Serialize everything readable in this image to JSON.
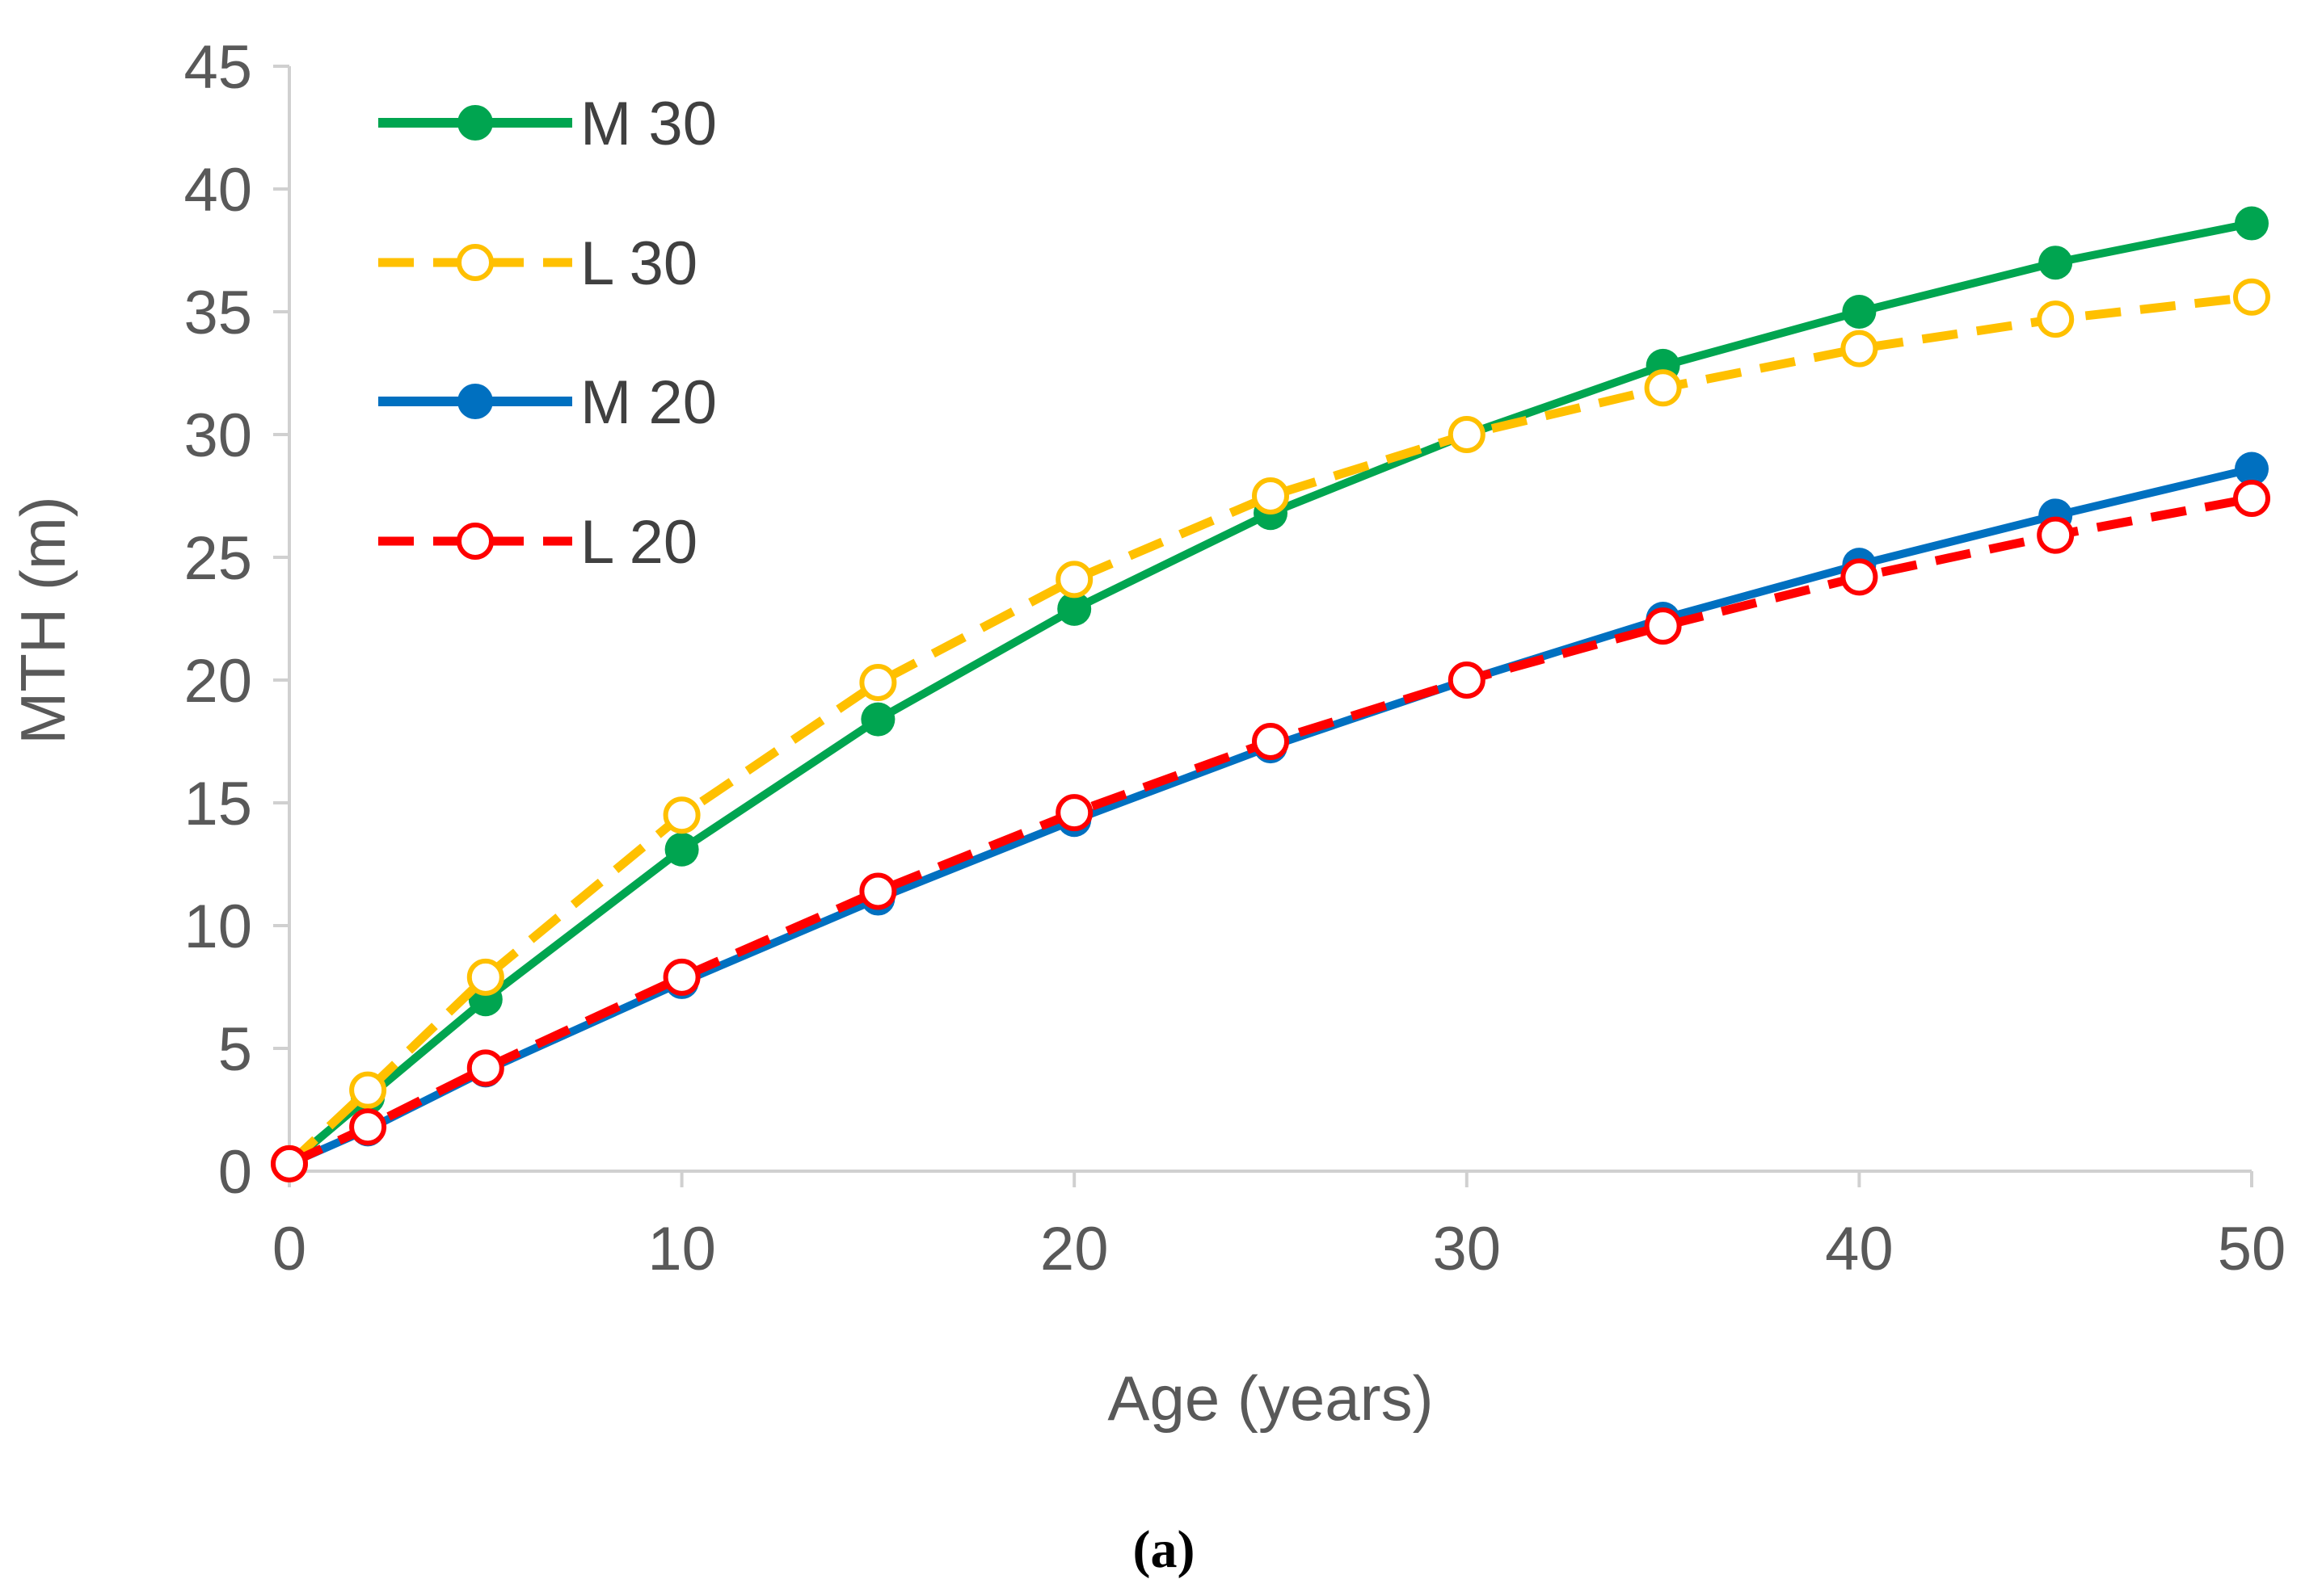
{
  "chart_data": {
    "type": "line",
    "title": "",
    "xlabel": "Age (years)",
    "ylabel": "MTH (m)",
    "xlim": [
      0,
      50
    ],
    "ylim": [
      0,
      45
    ],
    "x_ticks": [
      0,
      10,
      20,
      30,
      40,
      50
    ],
    "y_ticks": [
      0,
      5,
      10,
      15,
      20,
      25,
      30,
      35,
      40,
      45
    ],
    "x": [
      0,
      2,
      5,
      10,
      15,
      20,
      25,
      30,
      35,
      40,
      45,
      50
    ],
    "grid": false,
    "legend_position": "top-left",
    "series": [
      {
        "name": "M 30",
        "color": "#00A550",
        "line_style": "solid",
        "marker": "filled-circle",
        "values": [
          0.3,
          3.0,
          7.0,
          13.1,
          18.4,
          22.9,
          26.8,
          30.0,
          32.8,
          35.0,
          37.0,
          38.6
        ]
      },
      {
        "name": "L 30",
        "color": "#FFC000",
        "line_style": "dashed",
        "marker": "open-circle",
        "values": [
          0.3,
          3.3,
          7.9,
          14.5,
          19.9,
          24.1,
          27.5,
          30.0,
          31.9,
          33.5,
          34.7,
          35.6
        ]
      },
      {
        "name": "M 20",
        "color": "#0070C0",
        "line_style": "solid",
        "marker": "filled-circle",
        "values": [
          0.3,
          1.7,
          4.1,
          7.7,
          11.1,
          14.3,
          17.3,
          20.0,
          22.5,
          24.7,
          26.7,
          28.6
        ]
      },
      {
        "name": "L 20",
        "color": "#FF0000",
        "line_style": "dashed",
        "marker": "open-circle",
        "values": [
          0.3,
          1.8,
          4.2,
          7.9,
          11.4,
          14.6,
          17.5,
          20.0,
          22.2,
          24.2,
          25.9,
          27.4
        ]
      }
    ]
  },
  "caption": "(a)"
}
